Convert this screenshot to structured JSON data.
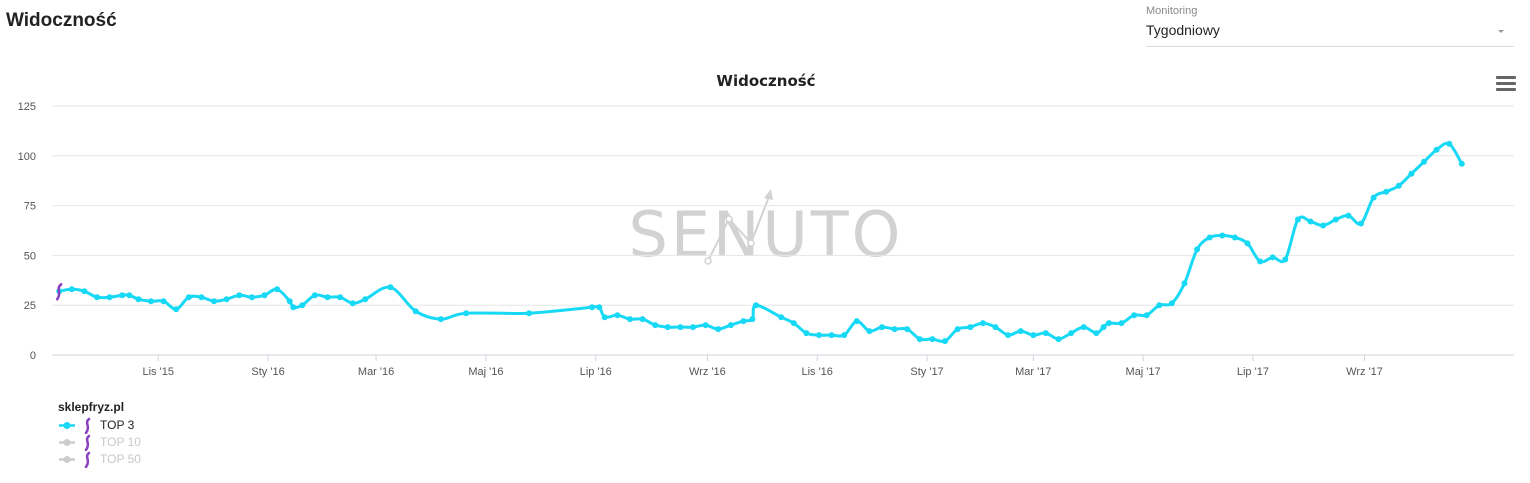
{
  "header": {
    "title": "Widoczność"
  },
  "monitoring": {
    "label": "Monitoring",
    "value": "Tygodniowy"
  },
  "watermark": "SENUTO",
  "colors": {
    "series": "#17d9f5",
    "inactive": "#cccccc",
    "grid": "#e6e6e6",
    "marker": "#8a3fbf"
  },
  "legend": {
    "title": "sklepfryz.pl",
    "items": [
      {
        "label": "TOP 3",
        "active": true
      },
      {
        "label": "TOP 10",
        "active": false
      },
      {
        "label": "TOP 50",
        "active": false
      }
    ]
  },
  "chart_data": {
    "type": "line",
    "title": "Widoczność",
    "xlabel": "",
    "ylabel": "",
    "ylim": [
      0,
      125
    ],
    "yticks": [
      0,
      25,
      50,
      75,
      100,
      125
    ],
    "xlim": [
      "2015-09-03",
      "2017-11-23"
    ],
    "xticks": [
      {
        "date": "2015-11-01",
        "label": "Lis '15"
      },
      {
        "date": "2016-01-01",
        "label": "Sty '16"
      },
      {
        "date": "2016-03-01",
        "label": "Mar '16"
      },
      {
        "date": "2016-05-01",
        "label": "Maj '16"
      },
      {
        "date": "2016-07-01",
        "label": "Lip '16"
      },
      {
        "date": "2016-09-01",
        "label": "Wrz '16"
      },
      {
        "date": "2016-11-01",
        "label": "Lis '16"
      },
      {
        "date": "2017-01-01",
        "label": "Sty '17"
      },
      {
        "date": "2017-03-01",
        "label": "Mar '17"
      },
      {
        "date": "2017-05-01",
        "label": "Maj '17"
      },
      {
        "date": "2017-07-01",
        "label": "Lip '17"
      },
      {
        "date": "2017-09-01",
        "label": "Wrz '17"
      }
    ],
    "annotation": {
      "date": "2015-09-07",
      "value": 32
    },
    "grid": true,
    "legend_position": "bottom-left",
    "series": [
      {
        "name": "TOP 3",
        "points": [
          [
            "2015-09-07",
            32
          ],
          [
            "2015-09-14",
            33
          ],
          [
            "2015-09-21",
            32
          ],
          [
            "2015-09-28",
            29
          ],
          [
            "2015-10-05",
            29
          ],
          [
            "2015-10-12",
            30
          ],
          [
            "2015-10-16",
            30
          ],
          [
            "2015-10-21",
            28
          ],
          [
            "2015-10-28",
            27
          ],
          [
            "2015-11-04",
            27
          ],
          [
            "2015-11-11",
            23
          ],
          [
            "2015-11-18",
            29
          ],
          [
            "2015-11-25",
            29
          ],
          [
            "2015-12-02",
            27
          ],
          [
            "2015-12-09",
            28
          ],
          [
            "2015-12-16",
            30
          ],
          [
            "2015-12-23",
            29
          ],
          [
            "2015-12-30",
            30
          ],
          [
            "2016-01-06",
            33
          ],
          [
            "2016-01-13",
            27
          ],
          [
            "2016-01-15",
            24
          ],
          [
            "2016-01-20",
            25
          ],
          [
            "2016-01-27",
            30
          ],
          [
            "2016-02-03",
            29
          ],
          [
            "2016-02-10",
            29
          ],
          [
            "2016-02-17",
            26
          ],
          [
            "2016-02-24",
            28
          ],
          [
            "2016-03-09",
            34
          ],
          [
            "2016-03-23",
            22
          ],
          [
            "2016-04-06",
            18
          ],
          [
            "2016-04-20",
            21
          ],
          [
            "2016-05-25",
            21
          ],
          [
            "2016-06-29",
            24
          ],
          [
            "2016-07-03",
            24
          ],
          [
            "2016-07-06",
            19
          ],
          [
            "2016-07-13",
            20
          ],
          [
            "2016-07-20",
            18
          ],
          [
            "2016-07-27",
            18
          ],
          [
            "2016-08-03",
            15
          ],
          [
            "2016-08-10",
            14
          ],
          [
            "2016-08-17",
            14
          ],
          [
            "2016-08-24",
            14
          ],
          [
            "2016-08-31",
            15
          ],
          [
            "2016-09-07",
            13
          ],
          [
            "2016-09-14",
            15
          ],
          [
            "2016-09-21",
            17
          ],
          [
            "2016-09-26",
            18
          ],
          [
            "2016-09-28",
            25
          ],
          [
            "2016-10-12",
            19
          ],
          [
            "2016-10-19",
            16
          ],
          [
            "2016-10-26",
            11
          ],
          [
            "2016-11-02",
            10
          ],
          [
            "2016-11-09",
            10
          ],
          [
            "2016-11-16",
            10
          ],
          [
            "2016-11-23",
            17
          ],
          [
            "2016-11-30",
            12
          ],
          [
            "2016-12-07",
            14
          ],
          [
            "2016-12-14",
            13
          ],
          [
            "2016-12-21",
            13
          ],
          [
            "2016-12-28",
            8
          ],
          [
            "2017-01-04",
            8
          ],
          [
            "2017-01-11",
            7
          ],
          [
            "2017-01-18",
            13
          ],
          [
            "2017-01-25",
            14
          ],
          [
            "2017-02-01",
            16
          ],
          [
            "2017-02-08",
            14
          ],
          [
            "2017-02-15",
            10
          ],
          [
            "2017-02-22",
            12
          ],
          [
            "2017-03-01",
            10
          ],
          [
            "2017-03-08",
            11
          ],
          [
            "2017-03-15",
            8
          ],
          [
            "2017-03-22",
            11
          ],
          [
            "2017-03-29",
            14
          ],
          [
            "2017-04-05",
            11
          ],
          [
            "2017-04-09",
            14
          ],
          [
            "2017-04-12",
            16
          ],
          [
            "2017-04-19",
            16
          ],
          [
            "2017-04-26",
            20
          ],
          [
            "2017-05-03",
            20
          ],
          [
            "2017-05-10",
            25
          ],
          [
            "2017-05-17",
            26
          ],
          [
            "2017-05-24",
            36
          ],
          [
            "2017-05-31",
            53
          ],
          [
            "2017-06-07",
            59
          ],
          [
            "2017-06-14",
            60
          ],
          [
            "2017-06-21",
            59
          ],
          [
            "2017-06-28",
            56
          ],
          [
            "2017-07-05",
            47
          ],
          [
            "2017-07-12",
            49
          ],
          [
            "2017-07-19",
            48
          ],
          [
            "2017-07-26",
            68
          ],
          [
            "2017-08-02",
            67
          ],
          [
            "2017-08-09",
            65
          ],
          [
            "2017-08-16",
            68
          ],
          [
            "2017-08-23",
            70
          ],
          [
            "2017-08-30",
            66
          ],
          [
            "2017-09-06",
            79
          ],
          [
            "2017-09-13",
            82
          ],
          [
            "2017-09-20",
            85
          ],
          [
            "2017-09-27",
            91
          ],
          [
            "2017-10-04",
            97
          ],
          [
            "2017-10-11",
            103
          ],
          [
            "2017-10-18",
            106
          ],
          [
            "2017-10-25",
            96
          ]
        ]
      }
    ]
  }
}
